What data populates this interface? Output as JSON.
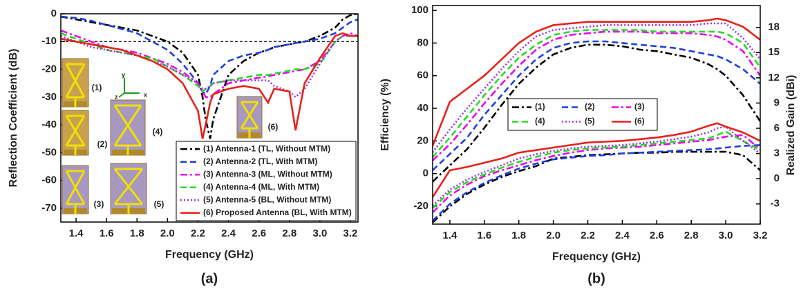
{
  "chart_data": [
    {
      "type": "line",
      "xlabel": "Frequency (GHz)",
      "ylabel": "Reflection Coefficient (dB)",
      "caption": "(a)",
      "xlim": [
        1.3,
        3.25
      ],
      "ylim": [
        -75,
        0
      ],
      "xticks": [
        1.4,
        1.6,
        1.8,
        {
          "value": 2,
          "label": "2.0"
        },
        2.2,
        2.4,
        2.6,
        2.8,
        {
          "value": 3,
          "label": "3.0"
        },
        3.2
      ],
      "yticks": [
        0,
        -10,
        -20,
        -30,
        -40,
        -50,
        -60,
        -70
      ],
      "hline": -10,
      "legend": "lower right",
      "insets": [
        "(1)",
        "(2)",
        "(3)",
        "(4)",
        "(5)",
        "(6)"
      ],
      "triad": [
        "y",
        "z",
        "x"
      ],
      "x": [
        1.3,
        1.4,
        1.5,
        1.6,
        1.7,
        1.8,
        1.9,
        2.0,
        2.1,
        2.2,
        2.23,
        2.25,
        2.28,
        2.3,
        2.4,
        2.5,
        2.6,
        2.66,
        2.7,
        2.8,
        2.84,
        2.9,
        3.0,
        3.1,
        3.15,
        3.2,
        3.25
      ],
      "series": [
        {
          "name": "(1) Antenna-1 (TL, Without MTM)",
          "color": "#000000",
          "dash": "dashdot",
          "values": [
            -1,
            -2,
            -3,
            -4,
            -5,
            -6,
            -8,
            -10,
            -14,
            -22,
            -30,
            -38,
            -45,
            -38,
            -22,
            -17,
            -14,
            -13,
            -12,
            -11,
            -10.5,
            -10,
            -8,
            -5,
            -2,
            -0.5,
            0
          ]
        },
        {
          "name": "(2) Antenna-2 (TL, With MTM)",
          "color": "#1f3fe0",
          "dash": "dash",
          "values": [
            -1,
            -1.5,
            -2.5,
            -4,
            -5.5,
            -7,
            -10,
            -13,
            -18,
            -25,
            -28,
            -29,
            -26,
            -22,
            -17,
            -15,
            -14,
            -13,
            -12,
            -11,
            -10.5,
            -10,
            -9,
            -7,
            -5,
            -3,
            -2
          ]
        },
        {
          "name": "(3) Antenna-3 (ML, Without MTM)",
          "color": "#ee00ee",
          "dash": "dashdot",
          "values": [
            -6,
            -8,
            -10,
            -12,
            -13,
            -14,
            -16,
            -18,
            -21,
            -25,
            -28,
            -30,
            -30,
            -29,
            -25,
            -24,
            -23,
            -22.5,
            -22,
            -21,
            -20.5,
            -20,
            -17,
            -10,
            -8,
            -7,
            -8
          ]
        },
        {
          "name": "(4) Antenna-4 (ML, With MTM)",
          "color": "#22dd22",
          "dash": "dash",
          "values": [
            -7,
            -9,
            -11,
            -13,
            -14,
            -15,
            -16,
            -19,
            -22,
            -26,
            -28,
            -27,
            -26,
            -25,
            -24,
            -23,
            -22,
            -22,
            -21.5,
            -20.5,
            -20,
            -20,
            -18,
            -10,
            -8,
            -8,
            -8
          ]
        },
        {
          "name": "(5) Antenna-5 (BL, Without MTM)",
          "color": "#9b30e0",
          "dash": "dot",
          "values": [
            -8,
            -10,
            -12,
            -13,
            -14,
            -15,
            -17,
            -19,
            -22,
            -25,
            -27,
            -27,
            -26,
            -25,
            -24,
            -24,
            -24,
            -24,
            -26,
            -28,
            -30,
            -27,
            -18,
            -10,
            -8,
            -8,
            -8
          ]
        },
        {
          "name": "(6) Proposed Antenna (BL, With MTM)",
          "color": "#e8201a",
          "dash": "solid",
          "values": [
            -9,
            -10,
            -11,
            -12,
            -13,
            -15,
            -17,
            -20,
            -25,
            -35,
            -45,
            -40,
            -32,
            -29,
            -27,
            -26,
            -27,
            -32,
            -27,
            -28,
            -42,
            -25,
            -16,
            -8,
            -7,
            -8,
            -8
          ]
        }
      ]
    },
    {
      "type": "line",
      "xlabel": "Frequency (GHz)",
      "ylabel": "Efficiency (%)",
      "y2label": "Realized Gain (dBi)",
      "caption": "(b)",
      "xlim": [
        1.3,
        3.2
      ],
      "ylim": [
        -31,
        103
      ],
      "y2lim": [
        -5.4,
        20.6
      ],
      "xticks": [
        1.4,
        1.6,
        1.8,
        {
          "value": 2,
          "label": "2.0"
        },
        2.2,
        2.4,
        2.6,
        2.8,
        {
          "value": 3,
          "label": "3.0"
        },
        3.2
      ],
      "yticks": [
        -20,
        0,
        20,
        40,
        60,
        80,
        100
      ],
      "y2ticks": [
        -3,
        0,
        3,
        6,
        9,
        12,
        15,
        18
      ],
      "legend": "center",
      "x": [
        1.3,
        1.4,
        1.5,
        1.6,
        1.7,
        1.8,
        1.9,
        2.0,
        2.1,
        2.2,
        2.3,
        2.4,
        2.5,
        2.6,
        2.7,
        2.8,
        2.9,
        2.95,
        3.0,
        3.1,
        3.2
      ],
      "series": [
        {
          "name": "(1)",
          "color": "#000000",
          "dash": "dashdot",
          "values": [
            -5,
            5,
            15,
            28,
            42,
            55,
            65,
            73,
            77,
            79,
            79,
            78,
            76,
            75,
            73,
            71,
            67,
            64,
            60,
            48,
            32
          ]
        },
        {
          "name": "(2)",
          "color": "#1f3fe0",
          "dash": "dash",
          "values": [
            2,
            12,
            22,
            36,
            48,
            60,
            70,
            77,
            80,
            81,
            81,
            80,
            79,
            78,
            77,
            75,
            73,
            72,
            70,
            64,
            55
          ]
        },
        {
          "name": "(3)",
          "color": "#ee00ee",
          "dash": "dashdot",
          "values": [
            8,
            18,
            30,
            43,
            55,
            66,
            76,
            82,
            85,
            86,
            87,
            87,
            87,
            86,
            86,
            86,
            85,
            84,
            82,
            75,
            60
          ]
        },
        {
          "name": "(4)",
          "color": "#22dd22",
          "dash": "dash",
          "values": [
            10,
            22,
            35,
            48,
            60,
            71,
            79,
            85,
            87,
            88,
            88,
            88,
            88,
            87,
            87,
            87,
            87,
            87,
            86,
            80,
            65
          ]
        },
        {
          "name": "(5)",
          "color": "#9b30e0",
          "dash": "dot",
          "values": [
            13,
            27,
            40,
            52,
            64,
            75,
            84,
            88,
            89,
            90,
            91,
            91,
            91,
            91,
            91,
            91,
            92,
            92,
            92,
            83,
            70
          ]
        },
        {
          "name": "(6)",
          "color": "#e8201a",
          "dash": "solid",
          "values": [
            17,
            44,
            52,
            60,
            70,
            80,
            87,
            91,
            92,
            93,
            93,
            93,
            93,
            93,
            93,
            93,
            94,
            95,
            94,
            90,
            82
          ]
        },
        {
          "axis": "y2",
          "color": "#000000",
          "dash": "dashdot",
          "values": [
            -5.2,
            -3.3,
            -1.8,
            -0.7,
            0.2,
            0.9,
            1.5,
            2.4,
            2.6,
            2.8,
            2.9,
            3.0,
            3.1,
            3.1,
            3.2,
            3.2,
            3.2,
            3.2,
            3.2,
            2.8,
            1.0
          ]
        },
        {
          "axis": "y2",
          "color": "#1f3fe0",
          "dash": "dash",
          "values": [
            -5.0,
            -3.0,
            -1.6,
            -0.5,
            0.4,
            1.2,
            1.8,
            2.3,
            2.5,
            2.7,
            2.8,
            3.0,
            3.1,
            3.2,
            3.3,
            3.4,
            3.5,
            3.6,
            3.7,
            3.9,
            4.0
          ]
        },
        {
          "axis": "y2",
          "color": "#ee00ee",
          "dash": "dashdot",
          "values": [
            -4.0,
            -2.0,
            -0.7,
            0.3,
            1.0,
            1.6,
            2.2,
            2.7,
            3.1,
            3.4,
            3.6,
            3.7,
            3.8,
            4.0,
            4.2,
            4.4,
            4.6,
            4.8,
            5.0,
            5.2,
            3.5
          ]
        },
        {
          "axis": "y2",
          "color": "#22dd22",
          "dash": "dash",
          "values": [
            -3.5,
            -1.6,
            -0.4,
            0.5,
            1.3,
            2.0,
            2.6,
            3.1,
            3.4,
            3.6,
            3.7,
            3.8,
            4.0,
            4.2,
            4.4,
            4.6,
            4.8,
            5.2,
            5.6,
            4.5,
            3.4
          ]
        },
        {
          "axis": "y2",
          "color": "#9b30e0",
          "dash": "dot",
          "values": [
            -3.2,
            -1.3,
            -0.1,
            0.8,
            1.6,
            2.4,
            2.9,
            3.3,
            3.6,
            3.8,
            3.9,
            4.0,
            4.2,
            4.4,
            4.7,
            5.0,
            5.5,
            6.0,
            6.2,
            4.5,
            3.0
          ]
        },
        {
          "axis": "y2",
          "color": "#e8201a",
          "dash": "solid",
          "values": [
            -2.2,
            1.0,
            1.4,
            1.9,
            2.4,
            3.1,
            3.4,
            3.7,
            4.0,
            4.3,
            4.4,
            4.5,
            4.7,
            4.9,
            5.2,
            5.6,
            6.3,
            6.6,
            6.2,
            5.5,
            4.5
          ]
        }
      ]
    }
  ]
}
